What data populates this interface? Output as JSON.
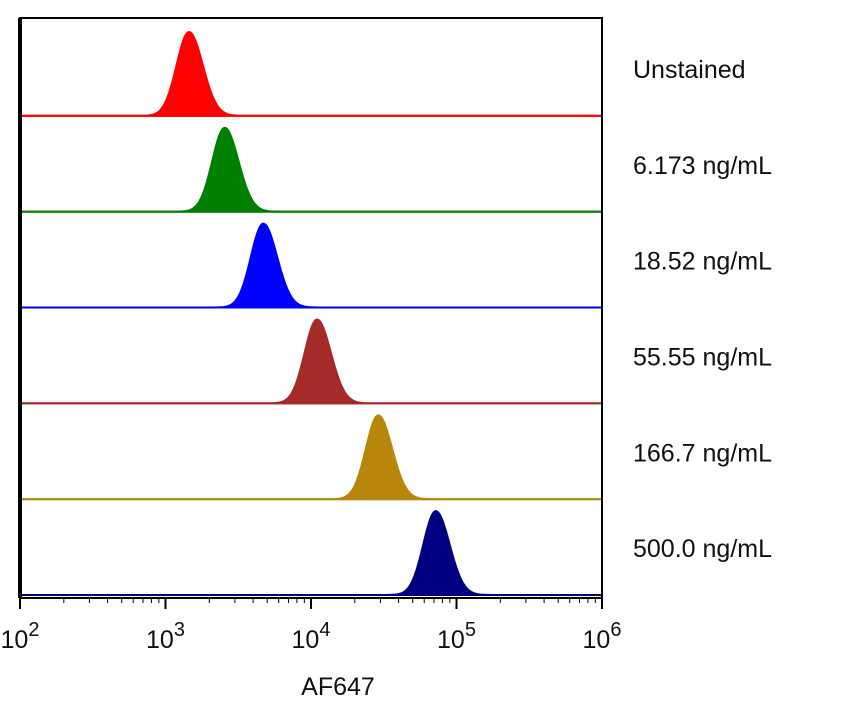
{
  "chart_data": {
    "type": "area",
    "xlabel": "AF647",
    "x_scale": "log",
    "xlim": [
      100,
      1000000
    ],
    "x_ticks": [
      {
        "value": 100,
        "base": "10",
        "exp": "2"
      },
      {
        "value": 1000,
        "base": "10",
        "exp": "3"
      },
      {
        "value": 10000,
        "base": "10",
        "exp": "4"
      },
      {
        "value": 100000,
        "base": "10",
        "exp": "5"
      },
      {
        "value": 1000000,
        "base": "10",
        "exp": "6"
      }
    ],
    "grid": false,
    "legend": "right",
    "series": [
      {
        "name": "Unstained",
        "color": "#ff0000",
        "peak": 1450
      },
      {
        "name": "6.173 ng/mL",
        "color": "#008000",
        "peak": 2550
      },
      {
        "name": "18.52 ng/mL",
        "color": "#0000ff",
        "peak": 4700
      },
      {
        "name": "55.55 ng/mL",
        "color": "#a52a2a",
        "peak": 11000
      },
      {
        "name": "166.7 ng/mL",
        "color": "#b8860b",
        "peak": 29000
      },
      {
        "name": "500.0 ng/mL",
        "color": "#000080",
        "peak": 72000
      }
    ]
  }
}
